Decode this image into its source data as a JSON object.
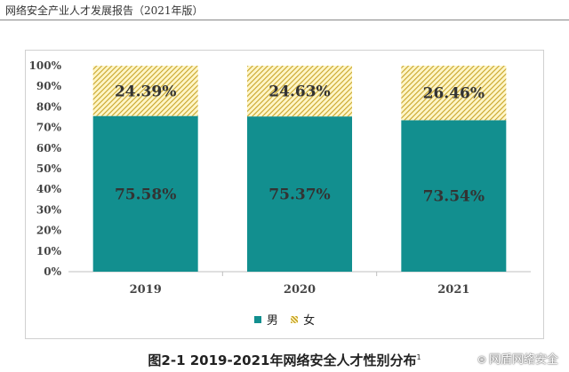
{
  "header": {
    "title": "网络安全产业人才发展报告（2021年版）"
  },
  "caption": {
    "text": "图2-1 2019-2021年网络安全人才性别分布",
    "footnote": "1"
  },
  "watermark": {
    "text": "网盾网络安全",
    "icon": "wechat-icon"
  },
  "legend": {
    "male": "男",
    "female": "女"
  },
  "colors": {
    "male": "#128f8f",
    "female_stripe": "#c8a52a",
    "female_bg": "#fff6c8"
  },
  "chart_data": {
    "type": "bar",
    "stacked": true,
    "categories": [
      "2019",
      "2020",
      "2021"
    ],
    "series": [
      {
        "name": "男",
        "values": [
          75.58,
          75.37,
          73.54
        ],
        "labels": [
          "75.58%",
          "75.37%",
          "73.54%"
        ]
      },
      {
        "name": "女",
        "values": [
          24.39,
          24.63,
          26.46
        ],
        "labels": [
          "24.39%",
          "24.63%",
          "26.46%"
        ]
      }
    ],
    "yticks": [
      "0%",
      "10%",
      "20%",
      "30%",
      "40%",
      "50%",
      "60%",
      "70%",
      "80%",
      "90%",
      "100%"
    ],
    "ylim": [
      0,
      100
    ],
    "grid": false,
    "legend_position": "bottom",
    "title": "",
    "xlabel": "",
    "ylabel": ""
  }
}
